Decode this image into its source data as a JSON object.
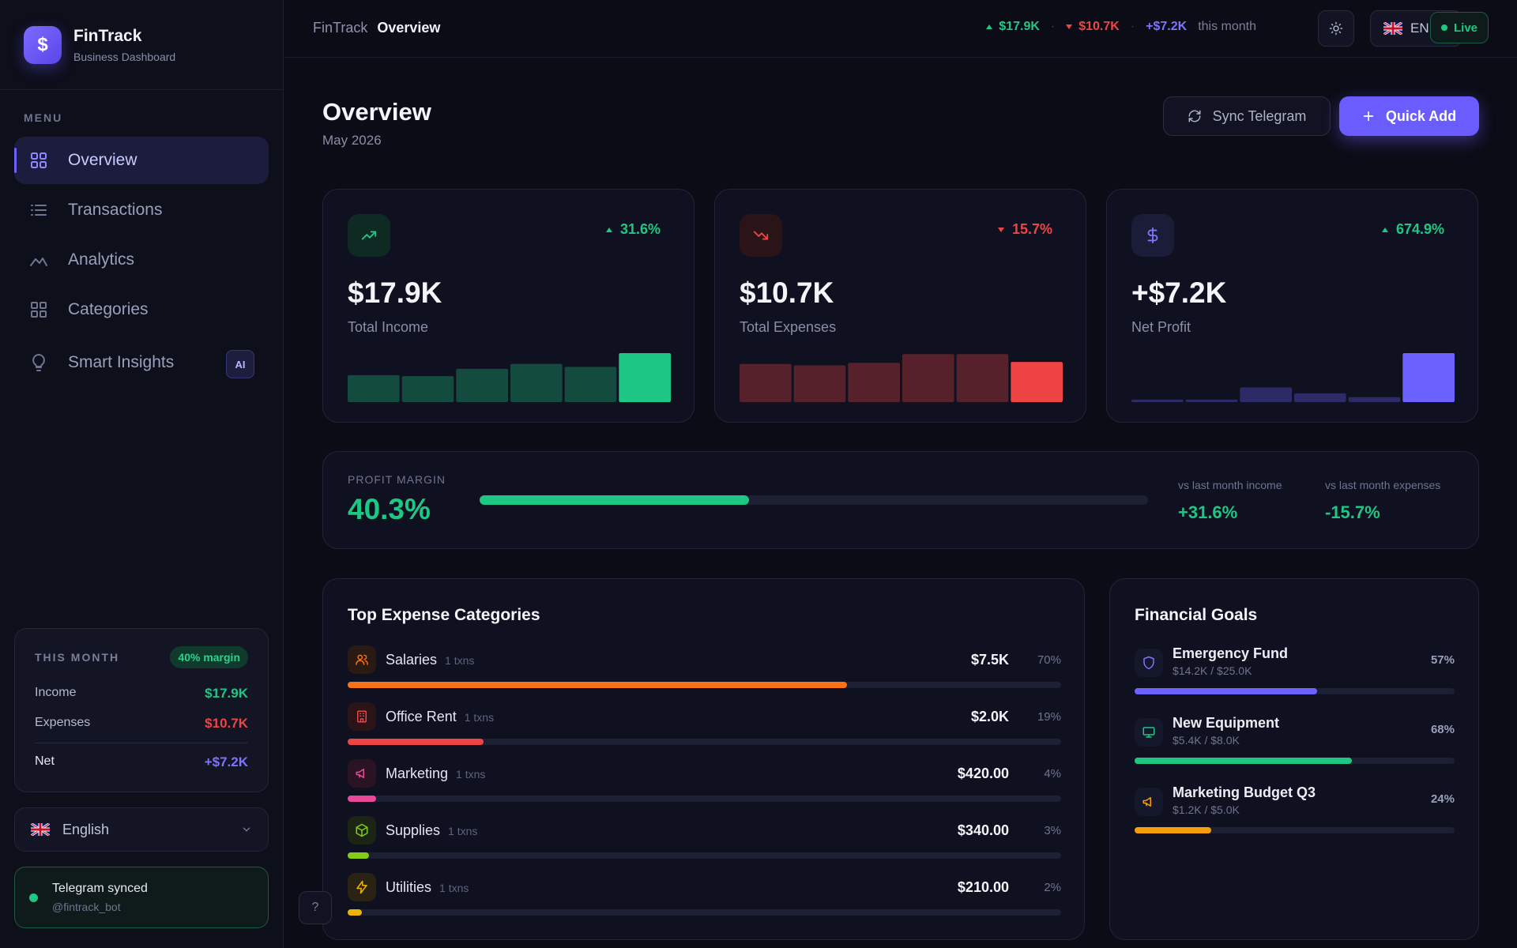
{
  "app": {
    "name": "FinTrack",
    "subtitle": "Business Dashboard"
  },
  "sidebar": {
    "menu_label": "MENU",
    "items": [
      {
        "label": "Overview",
        "icon": "grid-icon",
        "active": true
      },
      {
        "label": "Transactions",
        "icon": "list-icon"
      },
      {
        "label": "Analytics",
        "icon": "chart-line-icon"
      },
      {
        "label": "Categories",
        "icon": "categories-grid-icon"
      },
      {
        "label": "Smart Insights",
        "icon": "lightbulb-icon",
        "badge": "AI"
      }
    ],
    "month_card": {
      "title": "THIS MONTH",
      "margin_badge": "40% margin",
      "income_label": "Income",
      "income_value": "$17.9K",
      "expenses_label": "Expenses",
      "expenses_value": "$10.7K",
      "net_label": "Net",
      "net_value": "+$7.2K"
    },
    "language": {
      "label": "English",
      "flag": "uk-flag-icon"
    },
    "telegram": {
      "status": "Telegram synced",
      "handle": "@fintrack_bot"
    }
  },
  "topbar": {
    "breadcrumb_app": "FinTrack",
    "breadcrumb_page": "Overview",
    "income": "$17.9K",
    "expenses": "$10.7K",
    "net": "+$7.2K",
    "period": "this month",
    "language_code": "EN",
    "live_label": "Live"
  },
  "page": {
    "title": "Overview",
    "subtitle": "May 2026",
    "sync_button": "Sync Telegram",
    "quick_add_button": "Quick Add"
  },
  "kpis": [
    {
      "value": "$17.9K",
      "label": "Total Income",
      "change": "31.6%",
      "direction": "up",
      "color": "#1ec884",
      "icon": "trending-up-icon",
      "bars": [
        0.55,
        0.53,
        0.68,
        0.78,
        0.72,
        1.0
      ]
    },
    {
      "value": "$10.7K",
      "label": "Total Expenses",
      "change": "15.7%",
      "direction": "down",
      "color": "#ef4444",
      "icon": "trending-down-icon",
      "bars": [
        0.78,
        0.75,
        0.8,
        0.98,
        0.98,
        0.82
      ]
    },
    {
      "value": "+$7.2K",
      "label": "Net Profit",
      "change": "674.9%",
      "direction": "up",
      "color": "#6c63ff",
      "icon": "dollar-icon",
      "bars": [
        0.05,
        0.05,
        0.3,
        0.18,
        0.1,
        1.0
      ]
    }
  ],
  "profit_margin": {
    "label": "PROFIT MARGIN",
    "value": "40.3%",
    "fraction": 0.403,
    "income_label": "vs last month income",
    "income_value": "+31.6%",
    "expenses_label": "vs last month expenses",
    "expenses_value": "-15.7%"
  },
  "expense_categories": {
    "title": "Top Expense Categories",
    "items": [
      {
        "name": "Salaries",
        "txns": "1 txns",
        "amount": "$7.5K",
        "pct": "70%",
        "fraction": 0.7,
        "color": "#f97316",
        "icon": "users-icon"
      },
      {
        "name": "Office Rent",
        "txns": "1 txns",
        "amount": "$2.0K",
        "pct": "19%",
        "fraction": 0.19,
        "color": "#ef4444",
        "icon": "building-icon"
      },
      {
        "name": "Marketing",
        "txns": "1 txns",
        "amount": "$420.00",
        "pct": "4%",
        "fraction": 0.04,
        "color": "#ec4899",
        "icon": "megaphone-icon"
      },
      {
        "name": "Supplies",
        "txns": "1 txns",
        "amount": "$340.00",
        "pct": "3%",
        "fraction": 0.03,
        "color": "#84cc16",
        "icon": "box-icon"
      },
      {
        "name": "Utilities",
        "txns": "1 txns",
        "amount": "$210.00",
        "pct": "2%",
        "fraction": 0.02,
        "color": "#eab308",
        "icon": "bolt-icon"
      }
    ]
  },
  "goals": {
    "title": "Financial Goals",
    "items": [
      {
        "name": "Emergency Fund",
        "progress": "$14.2K / $25.0K",
        "pct": "57%",
        "fraction": 0.57,
        "color": "#6c63ff",
        "icon": "shield-icon"
      },
      {
        "name": "New Equipment",
        "progress": "$5.4K / $8.0K",
        "pct": "68%",
        "fraction": 0.68,
        "color": "#1ec884",
        "icon": "monitor-icon"
      },
      {
        "name": "Marketing Budget Q3",
        "progress": "$1.2K / $5.0K",
        "pct": "24%",
        "fraction": 0.24,
        "color": "#f59e0b",
        "icon": "megaphone-icon"
      }
    ]
  },
  "help": "?"
}
